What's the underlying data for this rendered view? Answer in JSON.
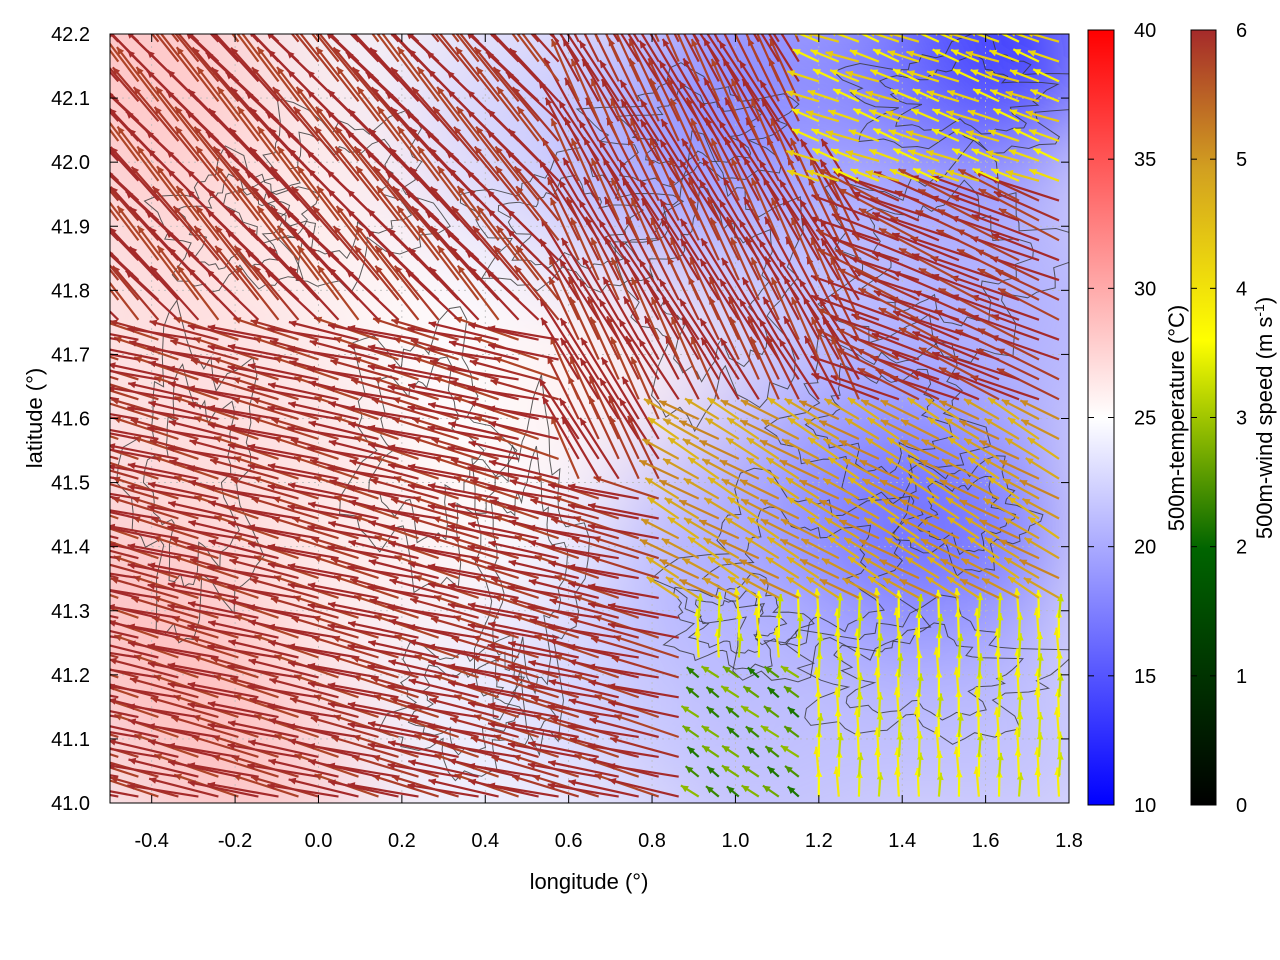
{
  "chart_data": {
    "type": "vector-field-over-heatmap",
    "title": "",
    "xlabel": "longitude (°)",
    "ylabel": "latitude (°)",
    "xlim": [
      -0.5,
      1.8
    ],
    "ylim": [
      41.0,
      42.2
    ],
    "x_ticks": [
      "-0.4",
      "-0.2",
      "0.0",
      "0.2",
      "0.4",
      "0.6",
      "0.8",
      "1.0",
      "1.2",
      "1.4",
      "1.6",
      "1.8"
    ],
    "y_ticks": [
      "41.0",
      "41.1",
      "41.2",
      "41.3",
      "41.4",
      "41.5",
      "41.6",
      "41.7",
      "41.8",
      "41.9",
      "42.0",
      "42.1",
      "42.2"
    ],
    "grid": true,
    "temperature_colorbar": {
      "label": "500m-temperature (°C)",
      "range": [
        10,
        40
      ],
      "ticks": [
        "10",
        "15",
        "20",
        "25",
        "30",
        "35",
        "40"
      ],
      "colors": [
        "#0000ff",
        "#ffffff",
        "#ff0000"
      ]
    },
    "wind_colorbar": {
      "label": "500m-wind speed (m s",
      "label_sup": "-1",
      "label_end": ")",
      "range": [
        0,
        6
      ],
      "ticks": [
        "0",
        "1",
        "2",
        "3",
        "4",
        "5",
        "6"
      ],
      "colors": [
        "#000000",
        "#006400",
        "#ffff00",
        "#d2a020",
        "#a52a2a"
      ]
    },
    "temperature_field": [
      {
        "lon": -0.45,
        "lat": 42.15,
        "t": 29
      },
      {
        "lon": -0.3,
        "lat": 42.0,
        "t": 28
      },
      {
        "lon": -0.4,
        "lat": 41.7,
        "t": 27
      },
      {
        "lon": -0.4,
        "lat": 41.3,
        "t": 29
      },
      {
        "lon": -0.2,
        "lat": 41.1,
        "t": 29
      },
      {
        "lon": -0.1,
        "lat": 41.5,
        "t": 27
      },
      {
        "lon": 0.1,
        "lat": 41.9,
        "t": 26
      },
      {
        "lon": 0.2,
        "lat": 41.3,
        "t": 26
      },
      {
        "lon": 0.4,
        "lat": 41.7,
        "t": 25
      },
      {
        "lon": 0.4,
        "lat": 41.1,
        "t": 24
      },
      {
        "lon": 0.6,
        "lat": 41.5,
        "t": 25
      },
      {
        "lon": 0.55,
        "lat": 42.05,
        "t": 22
      },
      {
        "lon": 0.75,
        "lat": 41.65,
        "t": 26
      },
      {
        "lon": 0.8,
        "lat": 41.2,
        "t": 22
      },
      {
        "lon": 0.95,
        "lat": 42.0,
        "t": 19
      },
      {
        "lon": 1.0,
        "lat": 41.4,
        "t": 20
      },
      {
        "lon": 1.1,
        "lat": 41.05,
        "t": 21
      },
      {
        "lon": 1.2,
        "lat": 41.8,
        "t": 22
      },
      {
        "lon": 1.3,
        "lat": 41.5,
        "t": 19
      },
      {
        "lon": 1.45,
        "lat": 41.3,
        "t": 21
      },
      {
        "lon": 1.45,
        "lat": 41.9,
        "t": 21
      },
      {
        "lon": 1.5,
        "lat": 41.42,
        "t": 16
      },
      {
        "lon": 1.65,
        "lat": 41.1,
        "t": 21
      },
      {
        "lon": 1.7,
        "lat": 41.75,
        "t": 20
      },
      {
        "lon": 1.6,
        "lat": 42.18,
        "t": 12
      },
      {
        "lon": 1.1,
        "lat": 42.15,
        "t": 18
      }
    ],
    "wind_regimes": [
      {
        "lon": [
          -0.5,
          0.85
        ],
        "lat": [
          41.0,
          41.75
        ],
        "u": -3.0,
        "v": 0.75,
        "speed": 6
      },
      {
        "lon": [
          -0.5,
          0.6
        ],
        "lat": [
          41.75,
          42.2
        ],
        "u": -1.8,
        "v": 2.0,
        "speed": 6
      },
      {
        "lon": [
          0.6,
          1.3
        ],
        "lat": [
          41.5,
          42.2
        ],
        "u": -1.3,
        "v": 2.4,
        "speed": 6
      },
      {
        "lon": [
          1.3,
          1.8
        ],
        "lat": [
          41.6,
          42.0
        ],
        "u": -2.6,
        "v": 1.1,
        "speed": 6
      },
      {
        "lon": [
          1.2,
          1.8
        ],
        "lat": [
          41.95,
          42.2
        ],
        "u": -1.6,
        "v": 0.6,
        "speed": 3.5
      },
      {
        "lon": [
          0.85,
          1.8
        ],
        "lat": [
          41.3,
          41.6
        ],
        "u": -1.4,
        "v": 0.8,
        "speed": 4.5
      },
      {
        "lon": [
          0.9,
          1.8
        ],
        "lat": [
          41.0,
          41.3
        ],
        "u": 0.0,
        "v": 0.7,
        "speed": 3
      },
      {
        "lon": [
          0.9,
          1.2
        ],
        "lat": [
          41.0,
          41.2
        ],
        "u": -0.4,
        "v": 0.3,
        "speed": 2
      }
    ]
  }
}
